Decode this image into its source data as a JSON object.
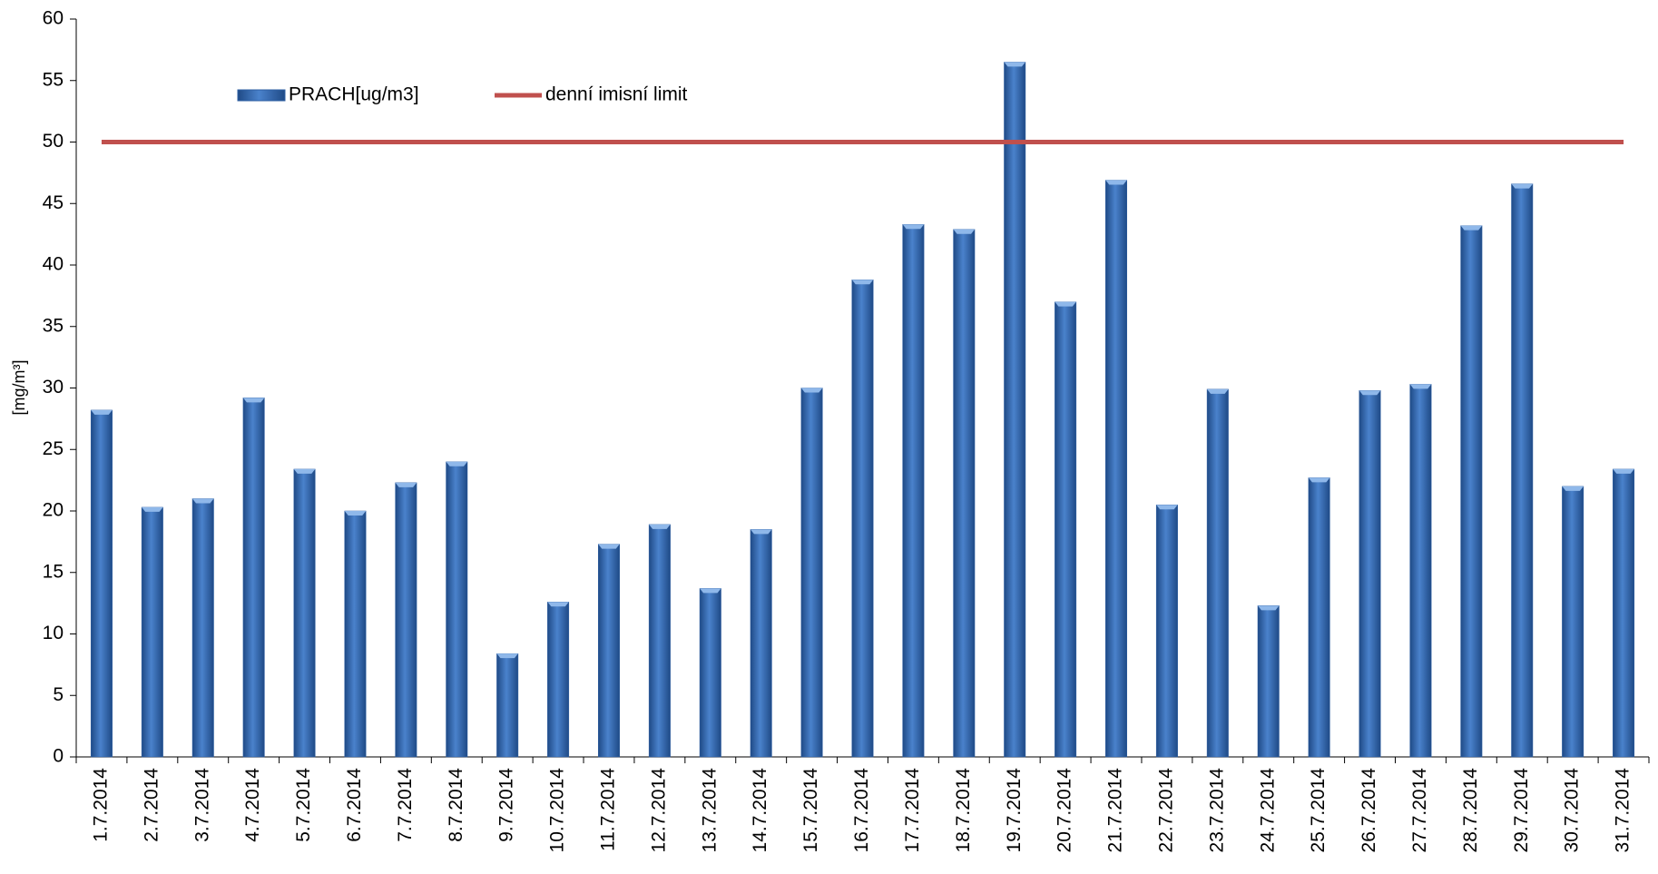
{
  "chart_data": {
    "type": "bar",
    "ylabel": "[mg/m³]",
    "categories": [
      "1.7.2014",
      "2.7.2014",
      "3.7.2014",
      "4.7.2014",
      "5.7.2014",
      "6.7.2014",
      "7.7.2014",
      "8.7.2014",
      "9.7.2014",
      "10.7.2014",
      "11.7.2014",
      "12.7.2014",
      "13.7.2014",
      "14.7.2014",
      "15.7.2014",
      "16.7.2014",
      "17.7.2014",
      "18.7.2014",
      "19.7.2014",
      "20.7.2014",
      "21.7.2014",
      "22.7.2014",
      "23.7.2014",
      "24.7.2014",
      "25.7.2014",
      "26.7.2014",
      "27.7.2014",
      "28.7.2014",
      "29.7.2014",
      "30.7.2014",
      "31.7.2014"
    ],
    "series": [
      {
        "name": "PRACH[ug/m3]",
        "type": "bar",
        "color": "#2e5fa3",
        "values": [
          28.2,
          20.3,
          21,
          29.2,
          23.4,
          20,
          22.3,
          24,
          8.4,
          12.6,
          17.3,
          18.9,
          13.7,
          18.5,
          30,
          38.8,
          43.3,
          42.9,
          56.5,
          37,
          46.9,
          20.5,
          29.9,
          12.3,
          22.7,
          29.8,
          30.3,
          43.2,
          46.6,
          22,
          23.4
        ]
      },
      {
        "name": "denní imisní limit",
        "type": "line",
        "color": "#c0504d",
        "values": [
          50,
          50,
          50,
          50,
          50,
          50,
          50,
          50,
          50,
          50,
          50,
          50,
          50,
          50,
          50,
          50,
          50,
          50,
          50,
          50,
          50,
          50,
          50,
          50,
          50,
          50,
          50,
          50,
          50,
          50,
          50
        ]
      }
    ],
    "ylim": [
      0,
      60
    ],
    "yticks": [
      0,
      5,
      10,
      15,
      20,
      25,
      30,
      35,
      40,
      45,
      50,
      55,
      60
    ]
  }
}
